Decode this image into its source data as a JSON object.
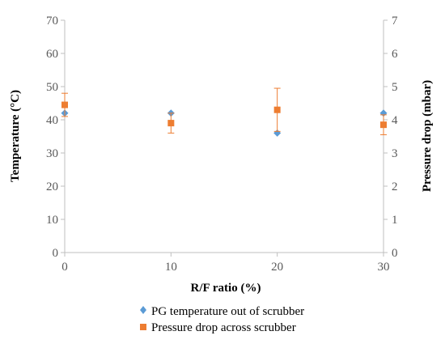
{
  "chart_data": {
    "type": "scatter",
    "title": "",
    "xlabel": "R/F ratio (%)",
    "ylabel": "Temperature (°C)",
    "y2label": "Pressure drop (mbar)",
    "xlim": [
      0,
      30
    ],
    "ylim": [
      0,
      70
    ],
    "y2lim": [
      0,
      7
    ],
    "xticks": [
      "0",
      "10",
      "20",
      "30"
    ],
    "yticks": [
      "0",
      "10",
      "20",
      "30",
      "40",
      "50",
      "60",
      "70"
    ],
    "y2ticks": [
      "0",
      "1",
      "2",
      "3",
      "4",
      "5",
      "6",
      "7"
    ],
    "grid": false,
    "legend_position": "bottom",
    "series": [
      {
        "name": "PG temperature out of scrubber",
        "axis": "left",
        "marker": "diamond",
        "color": "#5b9bd5",
        "x": [
          0,
          10,
          20,
          30
        ],
        "y": [
          42.0,
          42.0,
          36.0,
          42.0
        ]
      },
      {
        "name": "Pressure drop across scrubber",
        "axis": "right",
        "marker": "square",
        "color": "#ed7d31",
        "x": [
          0,
          10,
          20,
          30
        ],
        "y": [
          4.45,
          3.9,
          4.3,
          3.85
        ],
        "error": [
          0.35,
          0.3,
          0.65,
          0.3
        ]
      }
    ]
  }
}
